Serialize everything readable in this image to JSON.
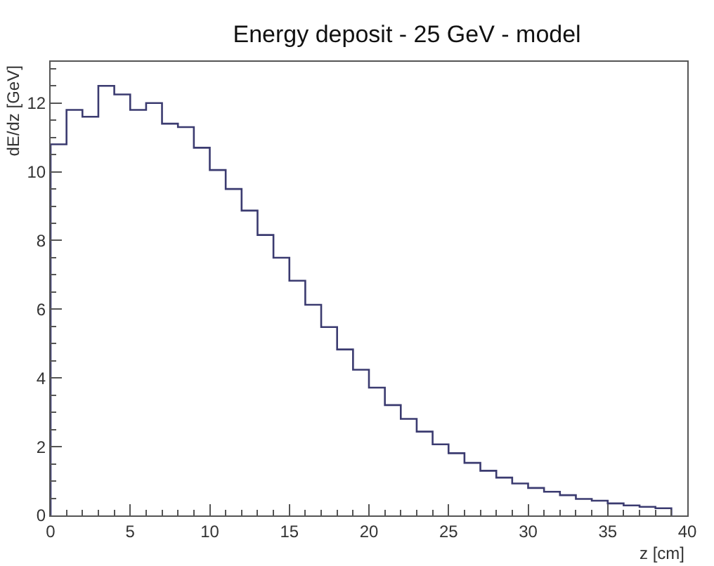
{
  "chart_data": {
    "type": "histogram",
    "title": "Energy deposit - 25 GeV - model",
    "xlabel": "z [cm]",
    "ylabel": "dE/dz [GeV]",
    "bins": [
      0,
      1,
      2,
      3,
      4,
      5,
      6,
      7,
      8,
      9,
      10,
      11,
      12,
      13,
      14,
      15,
      16,
      17,
      18,
      19,
      20,
      21,
      22,
      23,
      24,
      25,
      26,
      27,
      28,
      29,
      30,
      31,
      32,
      33,
      34,
      35,
      36,
      37,
      38,
      39
    ],
    "values": [
      10.8,
      11.8,
      11.6,
      12.5,
      12.25,
      11.8,
      12.0,
      11.4,
      11.3,
      10.7,
      10.05,
      9.5,
      8.87,
      8.16,
      7.5,
      6.83,
      6.13,
      5.48,
      4.83,
      4.24,
      3.72,
      3.21,
      2.81,
      2.44,
      2.07,
      1.81,
      1.53,
      1.3,
      1.1,
      0.93,
      0.8,
      0.69,
      0.59,
      0.48,
      0.43,
      0.35,
      0.29,
      0.25,
      0.21
    ],
    "color": "#3b3b70",
    "xlim": [
      0,
      40
    ],
    "xticks": [
      0,
      5,
      10,
      15,
      20,
      25,
      30,
      35,
      40
    ],
    "ylim": [
      0,
      13.2
    ],
    "yticks": [
      0,
      2,
      4,
      6,
      8,
      10,
      12
    ]
  }
}
